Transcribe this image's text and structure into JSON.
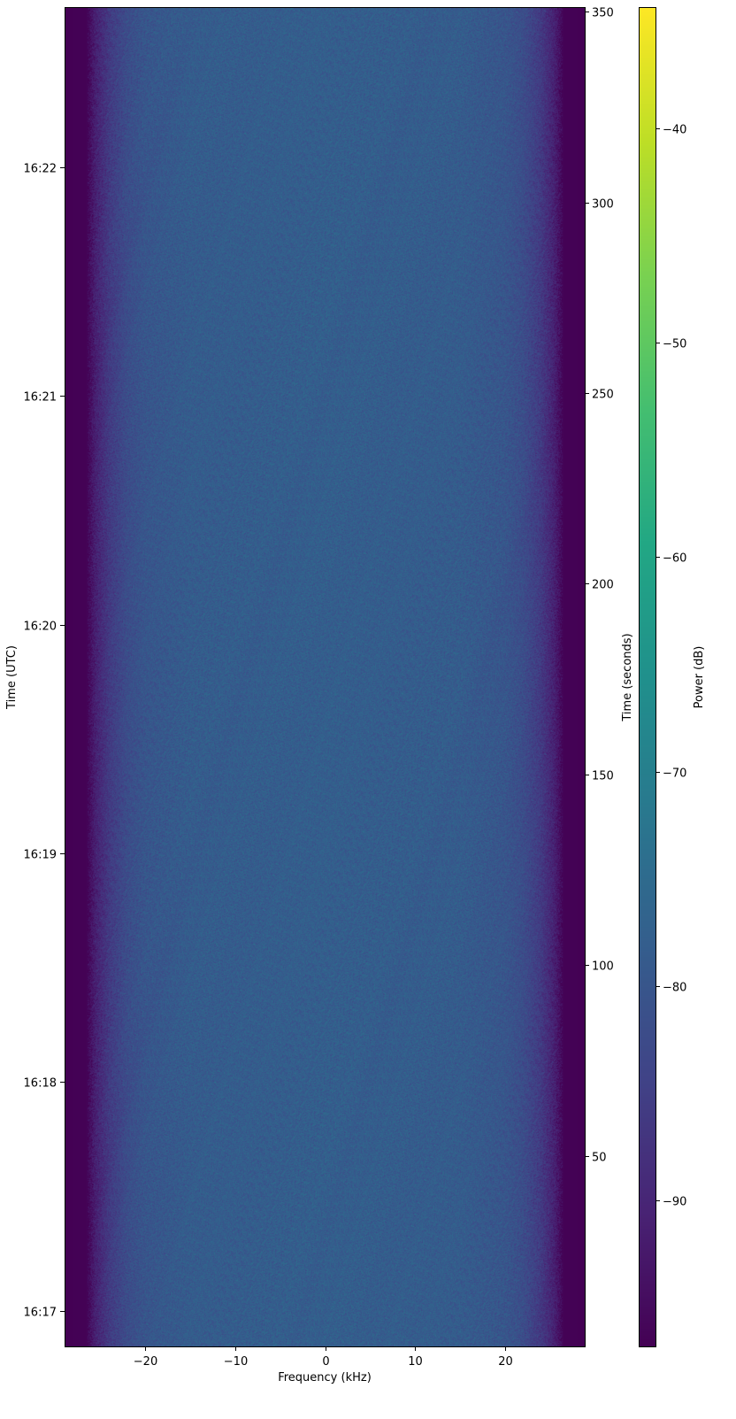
{
  "chart_data": {
    "type": "heatmap",
    "title": "",
    "xlabel": "Frequency (kHz)",
    "ylabel_left": "Time (UTC)",
    "ylabel_right": "Time (seconds)",
    "colorbar_label": "Power (dB)",
    "colormap": "viridis",
    "xlim": [
      -28.8,
      28.8
    ],
    "ylim_seconds": [
      0,
      351
    ],
    "clim": [
      -96.8,
      -34.4
    ],
    "x_ticks": [
      -20,
      -10,
      0,
      10,
      20
    ],
    "x_tick_labels": [
      "−20",
      "−10",
      "0",
      "10",
      "20"
    ],
    "left_ticks_seconds": [
      9.3,
      69.3,
      129.3,
      189.3,
      249.3,
      309.3
    ],
    "left_tick_labels": [
      "16:17",
      "16:18",
      "16:19",
      "16:20",
      "16:21",
      "16:22"
    ],
    "right_ticks": [
      50,
      100,
      150,
      200,
      250,
      300,
      350
    ],
    "right_tick_labels": [
      "50",
      "100",
      "150",
      "200",
      "250",
      "300",
      "350"
    ],
    "colorbar_ticks": [
      -90,
      -80,
      -70,
      -60,
      -50,
      -40
    ],
    "colorbar_tick_labels": [
      "−90",
      "−80",
      "−70",
      "−60",
      "−50",
      "−40"
    ],
    "frequency_profile": {
      "frequency_khz": [
        -28.8,
        -26.5,
        -25.5,
        -24,
        -22,
        -20,
        -15,
        0,
        15,
        20,
        22,
        24,
        25.5,
        26.5,
        28.8
      ],
      "mean_power_db": [
        -96.8,
        -96.5,
        -91,
        -86,
        -82,
        -80,
        -78.5,
        -78,
        -78.5,
        -80,
        -82,
        -86,
        -91,
        -96.5,
        -96.8
      ]
    },
    "noise_std_db": 2.5,
    "grid": false
  }
}
